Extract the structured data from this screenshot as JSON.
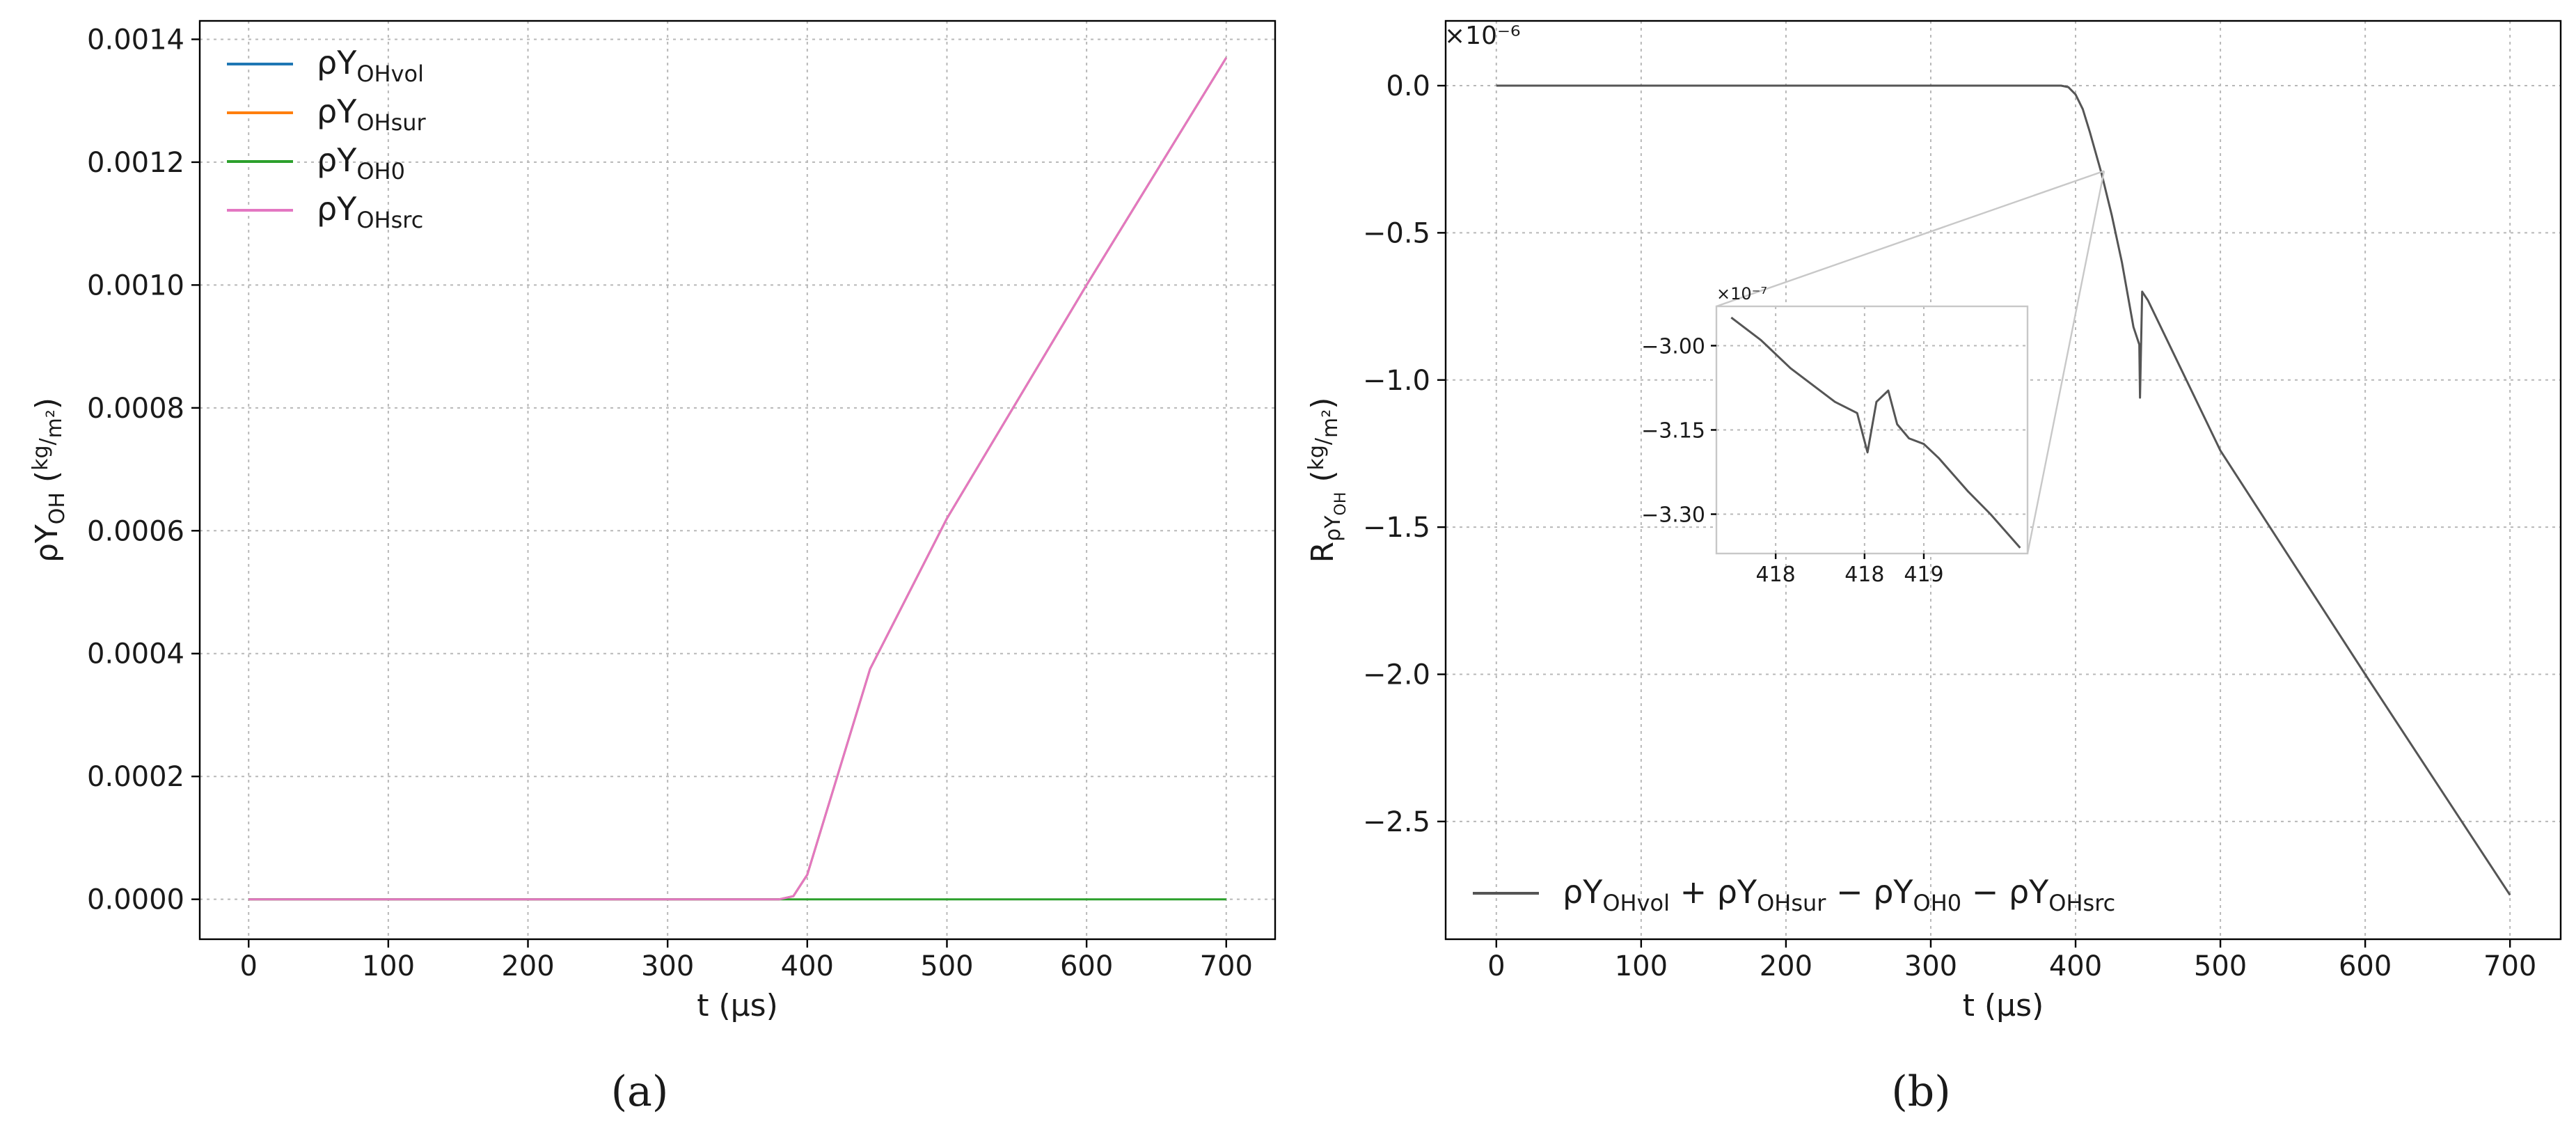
{
  "panels": [
    {
      "caption": "(a)",
      "offset_label": "",
      "chart_data": {
        "type": "line",
        "xlabel": "t (μs)",
        "ylabel": "ρY_OH (kg/m²)",
        "ylabel_parts": {
          "main": "ρY",
          "sub": "OH",
          "frac_num": "kg",
          "frac_den": "m²"
        },
        "xlim": [
          -35,
          735
        ],
        "ylim": [
          -6.5e-05,
          0.00143
        ],
        "xticks": [
          0,
          100,
          200,
          300,
          400,
          500,
          600,
          700
        ],
        "xtick_labels": [
          "0",
          "100",
          "200",
          "300",
          "400",
          "500",
          "600",
          "700"
        ],
        "yticks": [
          0,
          0.0002,
          0.0004,
          0.0006,
          0.0008,
          0.001,
          0.0012,
          0.0014
        ],
        "ytick_labels": [
          "0.0000",
          "0.0002",
          "0.0004",
          "0.0006",
          "0.0008",
          "0.0010",
          "0.0012",
          "0.0014"
        ],
        "grid": true,
        "legend_position": "top-left",
        "series": [
          {
            "name": "ρY_OHvol",
            "legend_main": "ρY",
            "legend_sub": "OHvol",
            "color": "#1f77b4",
            "x": [
              0,
              380,
              390,
              400,
              445,
              500,
              600,
              700
            ],
            "y": [
              0,
              0,
              5e-06,
              4e-05,
              0.000375,
              0.00062,
              0.001,
              0.00137
            ]
          },
          {
            "name": "ρY_OHsur",
            "legend_main": "ρY",
            "legend_sub": "OHsur",
            "color": "#ff7f0e",
            "x": [
              0,
              380,
              390,
              400,
              445,
              500,
              600,
              700
            ],
            "y": [
              0,
              0,
              5e-06,
              4e-05,
              0.000375,
              0.00062,
              0.001,
              0.00137
            ]
          },
          {
            "name": "ρY_OH0",
            "legend_main": "ρY",
            "legend_sub": "OH0",
            "color": "#2ca02c",
            "x": [
              0,
              700
            ],
            "y": [
              0,
              0
            ]
          },
          {
            "name": "ρY_OHsrc",
            "legend_main": "ρY",
            "legend_sub": "OHsrc",
            "color": "#e377c2",
            "x": [
              0,
              380,
              390,
              400,
              445,
              500,
              600,
              700
            ],
            "y": [
              0,
              0,
              5e-06,
              4e-05,
              0.000375,
              0.00062,
              0.001,
              0.00137
            ]
          }
        ]
      }
    },
    {
      "caption": "(b)",
      "offset_label": "×10⁻⁶",
      "chart_data": {
        "type": "line",
        "xlabel": "t (μs)",
        "ylabel": "R_ρY_OH (kg/m²)",
        "ylabel_parts": {
          "main": "R",
          "sub": "ρY",
          "subsub": "OH",
          "frac_num": "kg",
          "frac_den": "m²"
        },
        "xlim": [
          -35,
          735
        ],
        "ylim": [
          -2.9,
          0.22
        ],
        "xticks": [
          0,
          100,
          200,
          300,
          400,
          500,
          600,
          700
        ],
        "xtick_labels": [
          "0",
          "100",
          "200",
          "300",
          "400",
          "500",
          "600",
          "700"
        ],
        "yticks": [
          0,
          -0.5,
          -1,
          -1.5,
          -2,
          -2.5
        ],
        "ytick_labels": [
          "0.0",
          "−0.5",
          "−1.0",
          "−1.5",
          "−2.0",
          "−2.5"
        ],
        "grid": true,
        "legend_position": "bottom-left",
        "series": [
          {
            "name": "ρY_OHvol + ρY_OHsur − ρY_OH0 − ρY_OHsrc",
            "color": "#555555",
            "legend_parts": [
              {
                "main": "ρY",
                "sub": "OHvol"
              },
              {
                "op": " + "
              },
              {
                "main": "ρY",
                "sub": "OHsur"
              },
              {
                "op": " − "
              },
              {
                "main": "ρY",
                "sub": "OH0"
              },
              {
                "op": " − "
              },
              {
                "main": "ρY",
                "sub": "OHsrc"
              }
            ],
            "x": [
              0,
              390,
              395,
              400,
              405,
              410,
              418,
              425,
              432,
              440,
              444,
              444.5,
              446,
              450,
              500,
              600,
              700
            ],
            "y": [
              0,
              0,
              -0.005,
              -0.03,
              -0.08,
              -0.16,
              -0.3,
              -0.44,
              -0.6,
              -0.82,
              -0.88,
              -1.06,
              -0.7,
              -0.73,
              -1.24,
              -2.0,
              -2.75
            ]
          }
        ],
        "inset": {
          "offset_label": "×10⁻⁷",
          "xlim": [
            417.6,
            419.7
          ],
          "ylim": [
            -3.37,
            -2.93
          ],
          "xticks": [
            418,
            418.6,
            419
          ],
          "xtick_labels": [
            "418",
            "418",
            "419"
          ],
          "yticks": [
            -3.0,
            -3.15,
            -3.3
          ],
          "ytick_labels": [
            "−3.00",
            "−3.15",
            "−3.30"
          ],
          "color": "#555555",
          "x": [
            417.7,
            417.9,
            418.1,
            418.2,
            418.4,
            418.55,
            418.62,
            418.68,
            418.76,
            418.82,
            418.9,
            419.0,
            419.1,
            419.2,
            419.3,
            419.45,
            419.65
          ],
          "y": [
            -2.95,
            -2.99,
            -3.04,
            -3.06,
            -3.1,
            -3.12,
            -3.19,
            -3.1,
            -3.08,
            -3.14,
            -3.165,
            -3.175,
            -3.2,
            -3.23,
            -3.26,
            -3.3,
            -3.36
          ]
        }
      }
    }
  ]
}
